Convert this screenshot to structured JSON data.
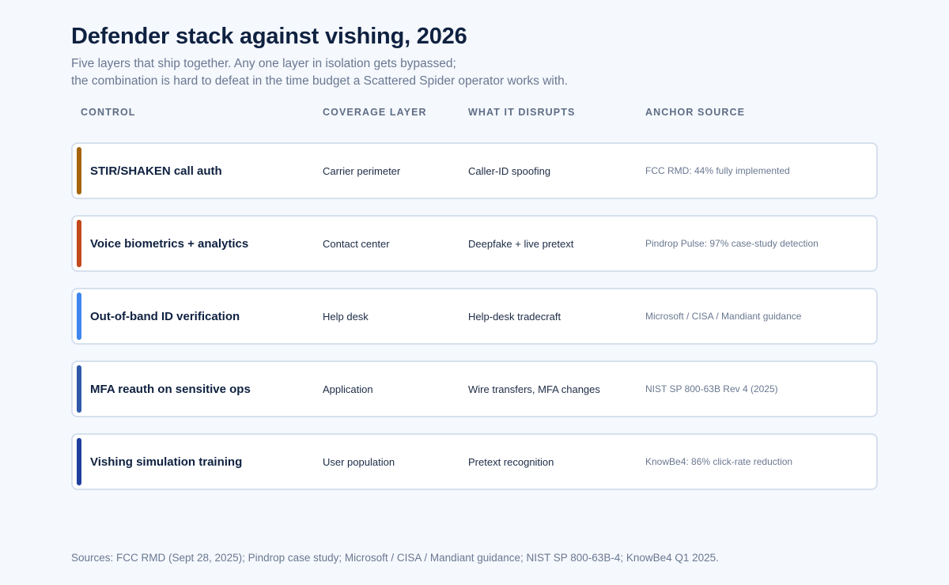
{
  "title": "Defender stack against vishing, 2026",
  "subtitle": {
    "line1": "Five layers that ship together. Any one layer in isolation gets bypassed;",
    "line2": "the combination is hard to defeat in the time budget a Scattered Spider operator works with."
  },
  "columns": {
    "control": "CONTROL",
    "layer": "COVERAGE LAYER",
    "disrupts": "WHAT IT DISRUPTS",
    "source": "ANCHOR SOURCE"
  },
  "rows": [
    {
      "control": "STIR/SHAKEN call auth",
      "layer": "Carrier perimeter",
      "disrupts": "Caller-ID spoofing",
      "source": "FCC RMD: 44% fully implemented",
      "accent": "#a5650f"
    },
    {
      "control": "Voice biometrics + analytics",
      "layer": "Contact center",
      "disrupts": "Deepfake + live pretext",
      "source": "Pindrop Pulse: 97% case-study detection",
      "accent": "#c2491c"
    },
    {
      "control": "Out-of-band ID verification",
      "layer": "Help desk",
      "disrupts": "Help-desk tradecraft",
      "source": "Microsoft / CISA / Mandiant guidance",
      "accent": "#3f86ef"
    },
    {
      "control": "MFA reauth on sensitive ops",
      "layer": "Application",
      "disrupts": "Wire transfers, MFA changes",
      "source": "NIST SP 800-63B Rev 4 (2025)",
      "accent": "#2f5aa8"
    },
    {
      "control": "Vishing simulation training",
      "layer": "User population",
      "disrupts": "Pretext recognition",
      "source": "KnowBe4: 86% click-rate reduction",
      "accent": "#1f3f9e"
    }
  ],
  "footer": "Sources: FCC RMD (Sept 28, 2025); Pindrop case study; Microsoft / CISA / Mandiant guidance; NIST SP 800-63B-4; KnowBe4 Q1 2025."
}
